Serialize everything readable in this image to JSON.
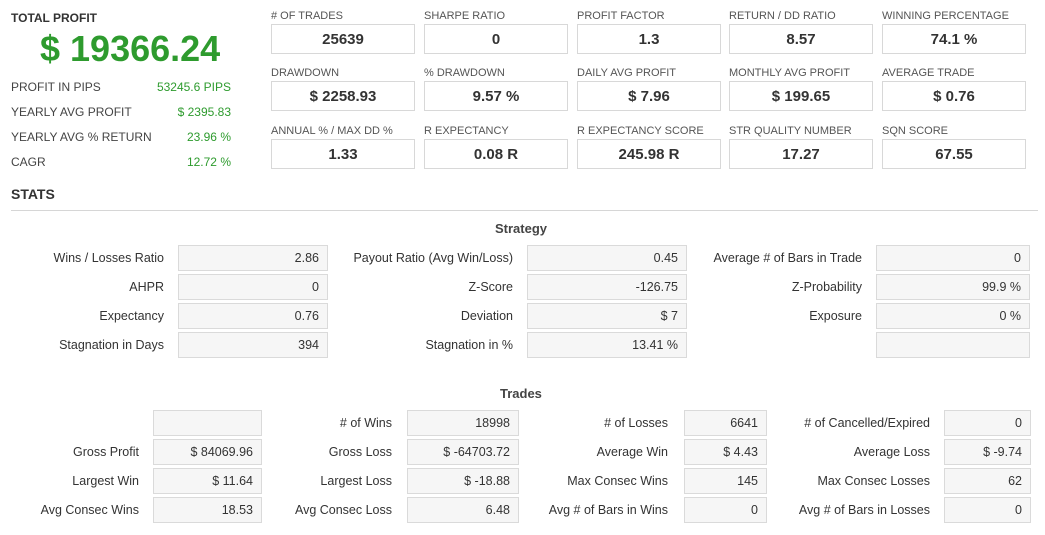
{
  "summary": {
    "total_profit_label": "TOTAL PROFIT",
    "total_profit_value": "$ 19366.24",
    "rows": [
      {
        "label": "PROFIT IN PIPS",
        "value": "53245.6 PIPS"
      },
      {
        "label": "YEARLY AVG PROFIT",
        "value": "$ 2395.83"
      },
      {
        "label": "YEARLY AVG % RETURN",
        "value": "23.96 %"
      },
      {
        "label": "CAGR",
        "value": "12.72 %"
      }
    ]
  },
  "metrics": [
    {
      "label": "# OF TRADES",
      "value": "25639"
    },
    {
      "label": "SHARPE RATIO",
      "value": "0"
    },
    {
      "label": "PROFIT FACTOR",
      "value": "1.3"
    },
    {
      "label": "RETURN / DD RATIO",
      "value": "8.57"
    },
    {
      "label": "WINNING PERCENTAGE",
      "value": "74.1 %"
    },
    {
      "label": "DRAWDOWN",
      "value": "$ 2258.93"
    },
    {
      "label": "% DRAWDOWN",
      "value": "9.57 %"
    },
    {
      "label": "DAILY AVG PROFIT",
      "value": "$ 7.96"
    },
    {
      "label": "MONTHLY AVG PROFIT",
      "value": "$ 199.65"
    },
    {
      "label": "AVERAGE TRADE",
      "value": "$ 0.76"
    },
    {
      "label": "ANNUAL % / MAX DD %",
      "value": "1.33"
    },
    {
      "label": "R EXPECTANCY",
      "value": "0.08 R"
    },
    {
      "label": "R EXPECTANCY SCORE",
      "value": "245.98 R"
    },
    {
      "label": "STR QUALITY NUMBER",
      "value": "17.27"
    },
    {
      "label": "SQN SCORE",
      "value": "67.55"
    }
  ],
  "stats_title": "STATS",
  "strategy": {
    "title": "Strategy",
    "rows": [
      [
        {
          "label": "Wins / Losses Ratio",
          "value": "2.86"
        },
        {
          "label": "Payout Ratio (Avg Win/Loss)",
          "value": "0.45"
        },
        {
          "label": "Average # of Bars in Trade",
          "value": "0"
        }
      ],
      [
        {
          "label": "AHPR",
          "value": "0"
        },
        {
          "label": "Z-Score",
          "value": "-126.75"
        },
        {
          "label": "Z-Probability",
          "value": "99.9 %"
        }
      ],
      [
        {
          "label": "Expectancy",
          "value": "0.76"
        },
        {
          "label": "Deviation",
          "value": "$ 7"
        },
        {
          "label": "Exposure",
          "value": "0 %"
        }
      ],
      [
        {
          "label": "Stagnation in Days",
          "value": "394"
        },
        {
          "label": "Stagnation in %",
          "value": "13.41 %"
        },
        {
          "label": "",
          "value": ""
        }
      ]
    ]
  },
  "trades": {
    "title": "Trades",
    "rows": [
      [
        {
          "label": "",
          "value": ""
        },
        {
          "label": "# of Wins",
          "value": "18998"
        },
        {
          "label": "# of Losses",
          "value": "6641"
        },
        {
          "label": "# of Cancelled/Expired",
          "value": "0"
        }
      ],
      [
        {
          "label": "Gross Profit",
          "value": "$ 84069.96"
        },
        {
          "label": "Gross Loss",
          "value": "$ -64703.72"
        },
        {
          "label": "Average Win",
          "value": "$ 4.43"
        },
        {
          "label": "Average Loss",
          "value": "$ -9.74"
        }
      ],
      [
        {
          "label": "Largest Win",
          "value": "$ 11.64"
        },
        {
          "label": "Largest Loss",
          "value": "$ -18.88"
        },
        {
          "label": "Max Consec Wins",
          "value": "145"
        },
        {
          "label": "Max Consec Losses",
          "value": "62"
        }
      ],
      [
        {
          "label": "Avg Consec Wins",
          "value": "18.53"
        },
        {
          "label": "Avg Consec Loss",
          "value": "6.48"
        },
        {
          "label": "Avg # of Bars in Wins",
          "value": "0"
        },
        {
          "label": "Avg # of Bars in Losses",
          "value": "0"
        }
      ]
    ]
  }
}
